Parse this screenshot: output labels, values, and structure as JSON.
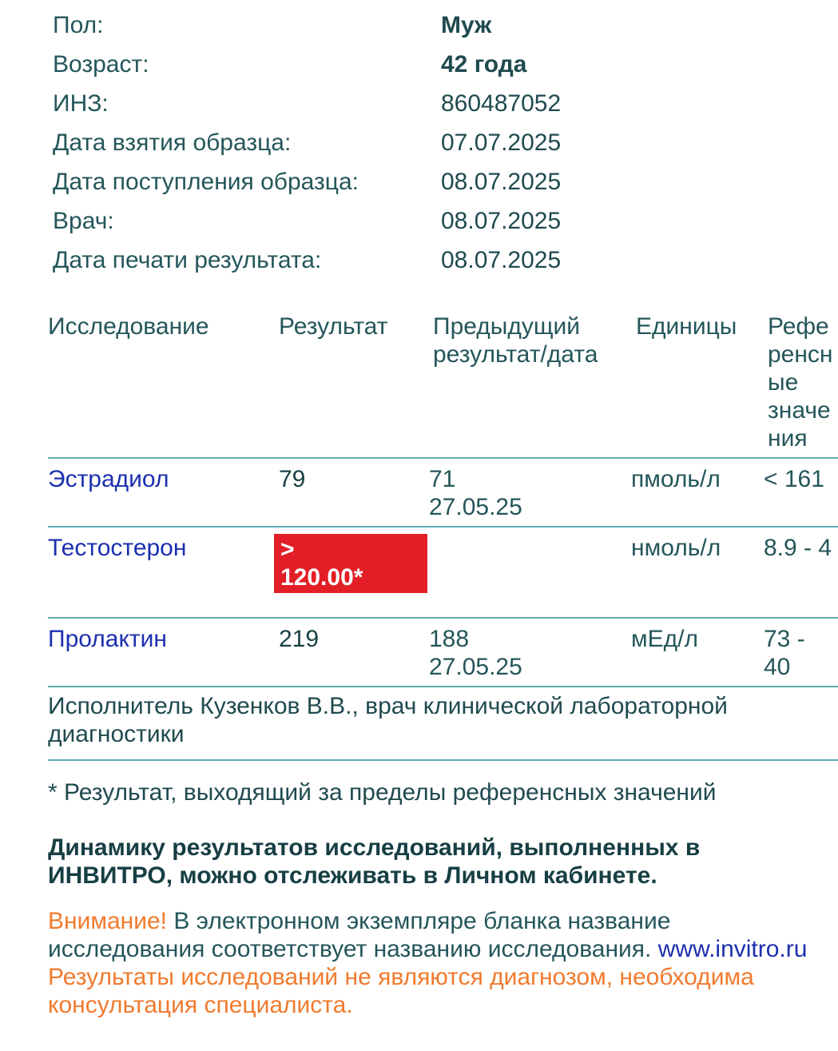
{
  "patient": [
    {
      "label": "Пол:",
      "value": "Муж",
      "bold": true
    },
    {
      "label": "Возраст:",
      "value": "42 года",
      "bold": true
    },
    {
      "label": "ИНЗ:",
      "value": "860487052"
    },
    {
      "label": "Дата взятия образца:",
      "value": "07.07.2025"
    },
    {
      "label": "Дата поступления образца:",
      "value": "08.07.2025"
    },
    {
      "label": "Врач:",
      "value": "08.07.2025"
    },
    {
      "label": "Дата печати результата:",
      "value": "08.07.2025"
    }
  ],
  "table": {
    "headers": {
      "test": "Исследование",
      "result": "Результат",
      "prev1": "Предыдущий",
      "prev2": "результат/дата",
      "units": "Единицы",
      "ref1": "Референсные",
      "ref2": "значения"
    },
    "rows": [
      {
        "test": "Эстрадиол",
        "result": "79",
        "prev_value": "71",
        "prev_date": "27.05.25",
        "units": "пмоль/л",
        "ref": "< 161"
      },
      {
        "test": "Тестостерон",
        "result_line1": ">",
        "result_line2": "120.00*",
        "flag": "out-of-range",
        "units": "нмоль/л",
        "ref": "8.9 - 4"
      },
      {
        "test": "Пролактин",
        "result": "219",
        "prev_value": "188",
        "prev_date": "27.05.25",
        "units": "мЕд/л",
        "ref": "73 - 40"
      }
    ]
  },
  "executor": "Исполнитель Кузенков В.В., врач клинической лабораторной диагностики",
  "footnote": "* Результат, выходящий за пределы референсных значений",
  "dynamics_line1": "Динамику результатов исследований, выполненных в ИНВИТРО, можно отслеживать в",
  "dynamics_line2": "Личном кабинете.",
  "warning_label": "Внимание!",
  "warning_text": " В электронном экземпляре бланка название исследования соответствует названию",
  "warning_line2": "исследования. ",
  "website": "www.invitro.ru",
  "disclaimer": "Результаты исследований не являются диагнозом, необходима консультация специалиста.",
  "colors": {
    "text": "#24565a",
    "rule": "#5eaeb3",
    "link": "#1c2fb0",
    "warning": "#f07a2e",
    "flag": "#e21f26"
  }
}
